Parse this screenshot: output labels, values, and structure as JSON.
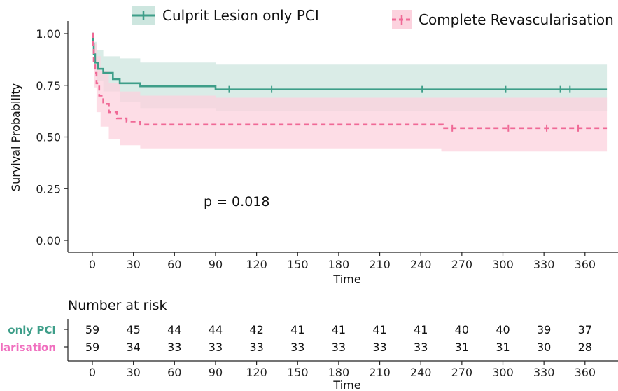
{
  "chart_data": {
    "type": "line",
    "title": "",
    "xlabel": "Time",
    "ylabel": "Survival Probability",
    "xlim": [
      -12,
      376
    ],
    "ylim": [
      0,
      1.0
    ],
    "x_ticks": [
      0,
      30,
      60,
      90,
      120,
      150,
      180,
      210,
      240,
      270,
      300,
      330,
      360
    ],
    "y_ticks": [
      "0.00",
      "0.25",
      "0.50",
      "0.75",
      "1.00"
    ],
    "annotation": "p = 0.018",
    "legend_position": "top",
    "series": [
      {
        "name": "Culprit Lesion only PCI",
        "color": "#3e9e89",
        "band_color": "#cde6df",
        "line_style": "solid",
        "steps": [
          [
            0,
            1.0
          ],
          [
            0.5,
            0.95
          ],
          [
            1,
            0.9
          ],
          [
            2,
            0.86
          ],
          [
            4,
            0.83
          ],
          [
            8,
            0.81
          ],
          [
            15,
            0.78
          ],
          [
            20,
            0.76
          ],
          [
            35,
            0.745
          ],
          [
            90,
            0.73
          ],
          [
            376,
            0.73
          ]
        ],
        "ci_upper": [
          [
            0,
            1.0
          ],
          [
            1,
            0.96
          ],
          [
            3,
            0.92
          ],
          [
            8,
            0.89
          ],
          [
            20,
            0.88
          ],
          [
            35,
            0.86
          ],
          [
            90,
            0.85
          ],
          [
            376,
            0.85
          ]
        ],
        "ci_lower": [
          [
            0,
            1.0
          ],
          [
            1,
            0.83
          ],
          [
            3,
            0.77
          ],
          [
            8,
            0.72
          ],
          [
            20,
            0.67
          ],
          [
            35,
            0.64
          ],
          [
            90,
            0.625
          ],
          [
            376,
            0.625
          ]
        ],
        "censor_x": [
          100,
          131,
          241,
          302,
          342,
          349
        ]
      },
      {
        "name": "Complete Revascularisation",
        "color": "#f06996",
        "band_color": "#fcd2de",
        "line_style": "dashed",
        "steps": [
          [
            0,
            1.0
          ],
          [
            0.5,
            0.93
          ],
          [
            1,
            0.86
          ],
          [
            2,
            0.81
          ],
          [
            3,
            0.76
          ],
          [
            5,
            0.7
          ],
          [
            8,
            0.66
          ],
          [
            12,
            0.62
          ],
          [
            18,
            0.59
          ],
          [
            25,
            0.575
          ],
          [
            35,
            0.56
          ],
          [
            255,
            0.56
          ],
          [
            256,
            0.543
          ],
          [
            376,
            0.543
          ]
        ],
        "ci_upper": [
          [
            0,
            1.0
          ],
          [
            1,
            0.95
          ],
          [
            3,
            0.89
          ],
          [
            6,
            0.82
          ],
          [
            12,
            0.76
          ],
          [
            20,
            0.72
          ],
          [
            35,
            0.7
          ],
          [
            90,
            0.69
          ],
          [
            376,
            0.69
          ]
        ],
        "ci_lower": [
          [
            0,
            1.0
          ],
          [
            1,
            0.74
          ],
          [
            3,
            0.62
          ],
          [
            6,
            0.55
          ],
          [
            12,
            0.49
          ],
          [
            20,
            0.46
          ],
          [
            35,
            0.445
          ],
          [
            240,
            0.445
          ],
          [
            255,
            0.43
          ],
          [
            376,
            0.43
          ]
        ],
        "censor_x": [
          263,
          304,
          332,
          355
        ]
      }
    ]
  },
  "risk_table": {
    "title": "Number at risk",
    "xlabel": "Time",
    "times": [
      0,
      30,
      60,
      90,
      120,
      150,
      180,
      210,
      240,
      270,
      300,
      330,
      360
    ],
    "rows": [
      {
        "label": "Culprit Lesion only PCI",
        "visible_label": "only PCI",
        "color": "#3e9e89",
        "values": [
          59,
          45,
          44,
          44,
          42,
          41,
          41,
          41,
          41,
          40,
          40,
          39,
          37
        ]
      },
      {
        "label": "Complete Revascularisation",
        "visible_label": "larisation",
        "color": "#f06fbf",
        "values": [
          59,
          34,
          33,
          33,
          33,
          33,
          33,
          33,
          33,
          31,
          31,
          30,
          28
        ]
      }
    ]
  }
}
